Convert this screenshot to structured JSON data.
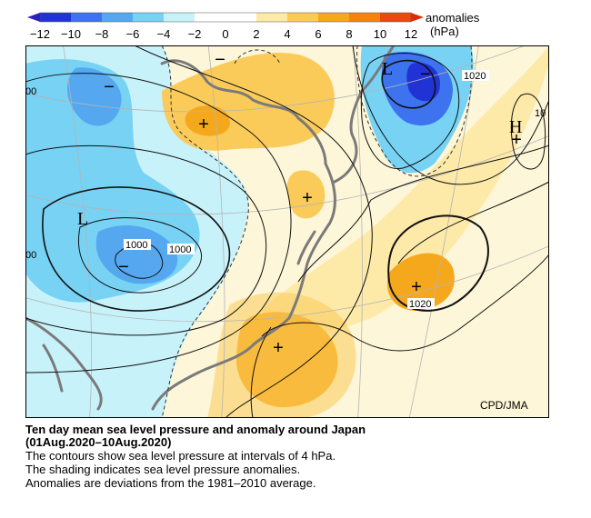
{
  "legend": {
    "title": "anomalies",
    "unit": "(hPa)",
    "ticks": [
      "−12",
      "−10",
      "−8",
      "−6",
      "−4",
      "−2",
      "0",
      "2",
      "4",
      "6",
      "8",
      "10",
      "12"
    ],
    "colors": [
      "#2233d6",
      "#3d73ee",
      "#55a8f0",
      "#77d2f4",
      "#c8f2fa",
      "#ffffff",
      "#ffffff",
      "#fde9a8",
      "#fbcb5a",
      "#f6a81c",
      "#f48412",
      "#e84a10"
    ]
  },
  "map": {
    "credit": "CPD/JMA",
    "low_letter": "L",
    "high_letter": "H",
    "contour_labels": {
      "c1000a": "1000",
      "c1000b": "1000",
      "c1020a": "1020",
      "c1020b": "1020",
      "edge_left_top": "00",
      "edge_left_bottom": "00",
      "edge_right": "10"
    },
    "plus_mark": "+",
    "minus_mark": "−"
  },
  "caption": {
    "line1": "Ten day mean sea level pressure and anomaly around Japan",
    "line2": "(01Aug.2020–10Aug.2020)",
    "line3": "The contours show sea level pressure at intervals of 4 hPa.",
    "line4": "The shading indicates sea level pressure anomalies.",
    "line5": "Anomalies are deviations from the 1981–2010 average."
  }
}
